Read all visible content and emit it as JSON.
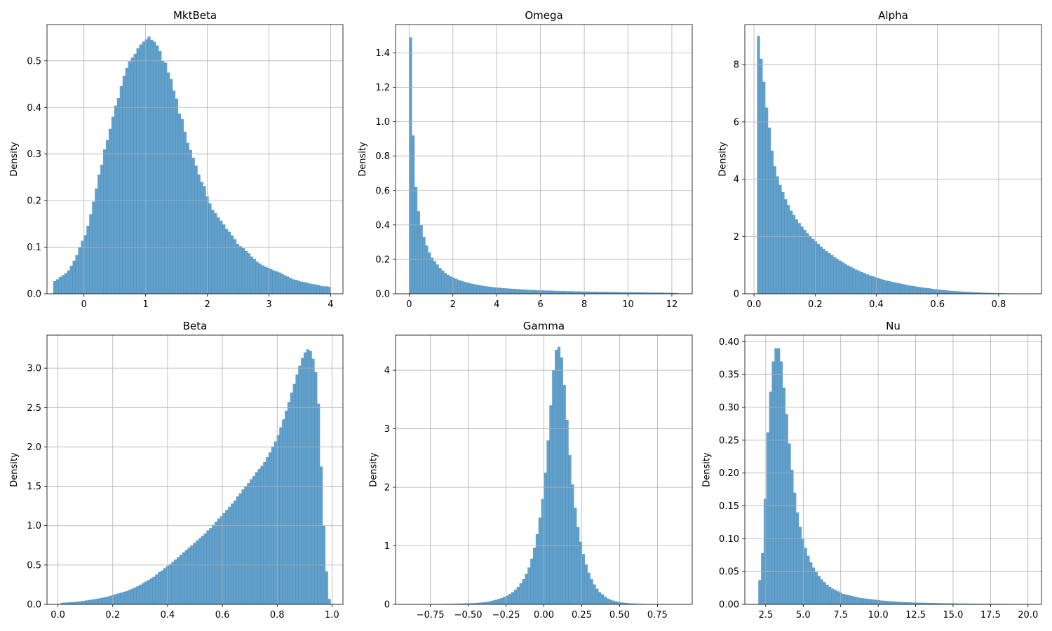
{
  "chart_data": [
    {
      "type": "bar",
      "title": "MktBeta",
      "ylabel": "Density",
      "xlim": [
        -0.6,
        4.2
      ],
      "ylim": [
        0,
        0.578
      ],
      "xticks": [
        {
          "v": 0,
          "label": "0"
        },
        {
          "v": 1,
          "label": "1"
        },
        {
          "v": 2,
          "label": "2"
        },
        {
          "v": 3,
          "label": "3"
        },
        {
          "v": 4,
          "label": "4"
        }
      ],
      "yticks": [
        {
          "v": 0,
          "label": "0.0"
        },
        {
          "v": 0.1,
          "label": "0.1"
        },
        {
          "v": 0.2,
          "label": "0.2"
        },
        {
          "v": 0.3,
          "label": "0.3"
        },
        {
          "v": 0.4,
          "label": "0.4"
        },
        {
          "v": 0.5,
          "label": "0.5"
        }
      ],
      "bins": {
        "start": -0.5,
        "end": 4.0,
        "count": 100
      },
      "values": [
        0.027,
        0.031,
        0.036,
        0.04,
        0.044,
        0.05,
        0.06,
        0.071,
        0.083,
        0.099,
        0.114,
        0.126,
        0.146,
        0.171,
        0.198,
        0.226,
        0.256,
        0.277,
        0.31,
        0.33,
        0.354,
        0.38,
        0.404,
        0.42,
        0.446,
        0.468,
        0.485,
        0.499,
        0.507,
        0.515,
        0.527,
        0.535,
        0.541,
        0.546,
        0.552,
        0.545,
        0.541,
        0.533,
        0.521,
        0.5,
        0.496,
        0.475,
        0.461,
        0.436,
        0.419,
        0.387,
        0.375,
        0.348,
        0.324,
        0.309,
        0.292,
        0.275,
        0.256,
        0.24,
        0.231,
        0.209,
        0.194,
        0.18,
        0.173,
        0.164,
        0.157,
        0.149,
        0.139,
        0.133,
        0.125,
        0.117,
        0.107,
        0.102,
        0.098,
        0.092,
        0.087,
        0.08,
        0.075,
        0.069,
        0.065,
        0.061,
        0.058,
        0.056,
        0.053,
        0.05,
        0.048,
        0.046,
        0.043,
        0.04,
        0.037,
        0.034,
        0.031,
        0.03,
        0.028,
        0.026,
        0.025,
        0.024,
        0.022,
        0.021,
        0.02,
        0.019,
        0.017,
        0.016,
        0.016,
        0.015
      ]
    },
    {
      "type": "bar",
      "title": "Omega",
      "ylabel": "Density",
      "xlim": [
        -0.62,
        12.93
      ],
      "ylim": [
        0,
        1.565
      ],
      "xticks": [
        {
          "v": 0,
          "label": "0"
        },
        {
          "v": 2,
          "label": "2"
        },
        {
          "v": 4,
          "label": "4"
        },
        {
          "v": 6,
          "label": "6"
        },
        {
          "v": 8,
          "label": "8"
        },
        {
          "v": 10,
          "label": "10"
        },
        {
          "v": 12,
          "label": "12"
        }
      ],
      "yticks": [
        {
          "v": 0,
          "label": "0.0"
        },
        {
          "v": 0.2,
          "label": "0.2"
        },
        {
          "v": 0.4,
          "label": "0.4"
        },
        {
          "v": 0.6,
          "label": "0.6"
        },
        {
          "v": 0.8,
          "label": "0.8"
        },
        {
          "v": 1.0,
          "label": "1.0"
        },
        {
          "v": 1.2,
          "label": "1.2"
        },
        {
          "v": 1.4,
          "label": "1.4"
        }
      ],
      "bins": {
        "start": 0.0,
        "end": 12.3,
        "count": 100
      },
      "values": [
        1.49,
        0.92,
        0.62,
        0.48,
        0.4,
        0.33,
        0.28,
        0.24,
        0.21,
        0.19,
        0.17,
        0.15,
        0.135,
        0.12,
        0.11,
        0.1,
        0.094,
        0.087,
        0.08,
        0.075,
        0.07,
        0.066,
        0.062,
        0.058,
        0.055,
        0.052,
        0.049,
        0.046,
        0.044,
        0.042,
        0.04,
        0.038,
        0.036,
        0.035,
        0.033,
        0.032,
        0.031,
        0.03,
        0.029,
        0.028,
        0.027,
        0.026,
        0.025,
        0.024,
        0.023,
        0.022,
        0.022,
        0.021,
        0.02,
        0.02,
        0.019,
        0.019,
        0.018,
        0.018,
        0.017,
        0.017,
        0.016,
        0.016,
        0.015,
        0.015,
        0.015,
        0.014,
        0.014,
        0.014,
        0.013,
        0.013,
        0.013,
        0.012,
        0.012,
        0.012,
        0.011,
        0.011,
        0.011,
        0.011,
        0.01,
        0.01,
        0.01,
        0.01,
        0.009,
        0.009,
        0.009,
        0.009,
        0.009,
        0.008,
        0.008,
        0.008,
        0.008,
        0.008,
        0.007,
        0.007,
        0.007,
        0.007,
        0.007,
        0.007,
        0.006,
        0.006,
        0.006,
        0.006,
        0.005,
        0.004
      ]
    },
    {
      "type": "bar",
      "title": "Alpha",
      "ylabel": "Density",
      "xlim": [
        -0.03,
        0.94
      ],
      "ylim": [
        0,
        9.4
      ],
      "xticks": [
        {
          "v": 0.0,
          "label": "0.0"
        },
        {
          "v": 0.2,
          "label": "0.2"
        },
        {
          "v": 0.4,
          "label": "0.4"
        },
        {
          "v": 0.6,
          "label": "0.6"
        },
        {
          "v": 0.8,
          "label": "0.8"
        }
      ],
      "yticks": [
        {
          "v": 0,
          "label": "0"
        },
        {
          "v": 2,
          "label": "2"
        },
        {
          "v": 4,
          "label": "4"
        },
        {
          "v": 6,
          "label": "6"
        },
        {
          "v": 8,
          "label": "8"
        }
      ],
      "bins": {
        "start": 0.01,
        "end": 0.9,
        "count": 100
      },
      "values": [
        9.0,
        8.2,
        7.4,
        6.5,
        5.8,
        5.0,
        4.45,
        4.1,
        3.8,
        3.55,
        3.3,
        3.1,
        2.9,
        2.75,
        2.6,
        2.47,
        2.35,
        2.23,
        2.12,
        2.02,
        1.92,
        1.83,
        1.74,
        1.65,
        1.57,
        1.49,
        1.42,
        1.35,
        1.28,
        1.22,
        1.16,
        1.1,
        1.04,
        0.99,
        0.94,
        0.89,
        0.84,
        0.8,
        0.76,
        0.72,
        0.68,
        0.64,
        0.61,
        0.58,
        0.55,
        0.52,
        0.49,
        0.46,
        0.44,
        0.42,
        0.4,
        0.38,
        0.36,
        0.34,
        0.32,
        0.3,
        0.28,
        0.27,
        0.25,
        0.24,
        0.22,
        0.21,
        0.2,
        0.19,
        0.17,
        0.16,
        0.15,
        0.14,
        0.13,
        0.12,
        0.11,
        0.1,
        0.095,
        0.088,
        0.082,
        0.076,
        0.07,
        0.065,
        0.06,
        0.055,
        0.05,
        0.046,
        0.042,
        0.038,
        0.035,
        0.032,
        0.029,
        0.026,
        0.024,
        0.022,
        0.02,
        0.018,
        0.016,
        0.015,
        0.013,
        0.012,
        0.011,
        0.01,
        0.009,
        0.008
      ]
    },
    {
      "type": "bar",
      "title": "Beta",
      "ylabel": "Density",
      "xlim": [
        -0.04,
        1.04
      ],
      "ylim": [
        0,
        3.42
      ],
      "xticks": [
        {
          "v": 0.0,
          "label": "0.0"
        },
        {
          "v": 0.2,
          "label": "0.2"
        },
        {
          "v": 0.4,
          "label": "0.4"
        },
        {
          "v": 0.6,
          "label": "0.6"
        },
        {
          "v": 0.8,
          "label": "0.8"
        },
        {
          "v": 1.0,
          "label": "1.0"
        }
      ],
      "yticks": [
        {
          "v": 0,
          "label": "0.0"
        },
        {
          "v": 0.5,
          "label": "0.5"
        },
        {
          "v": 1.0,
          "label": "1.0"
        },
        {
          "v": 1.5,
          "label": "1.5"
        },
        {
          "v": 2.0,
          "label": "2.0"
        },
        {
          "v": 2.5,
          "label": "2.5"
        },
        {
          "v": 3.0,
          "label": "3.0"
        }
      ],
      "bins": {
        "start": 0.01,
        "end": 0.995,
        "count": 100
      },
      "values": [
        0.02,
        0.022,
        0.024,
        0.027,
        0.03,
        0.033,
        0.036,
        0.04,
        0.045,
        0.05,
        0.055,
        0.06,
        0.066,
        0.072,
        0.078,
        0.085,
        0.092,
        0.1,
        0.11,
        0.12,
        0.13,
        0.14,
        0.15,
        0.16,
        0.17,
        0.185,
        0.2,
        0.215,
        0.23,
        0.25,
        0.27,
        0.29,
        0.31,
        0.33,
        0.35,
        0.38,
        0.41,
        0.43,
        0.46,
        0.49,
        0.51,
        0.54,
        0.57,
        0.6,
        0.63,
        0.66,
        0.69,
        0.72,
        0.75,
        0.78,
        0.81,
        0.84,
        0.87,
        0.9,
        0.94,
        0.97,
        1.01,
        1.05,
        1.09,
        1.12,
        1.16,
        1.2,
        1.24,
        1.28,
        1.32,
        1.37,
        1.41,
        1.46,
        1.5,
        1.54,
        1.59,
        1.63,
        1.68,
        1.72,
        1.76,
        1.81,
        1.87,
        1.93,
        2.0,
        2.07,
        2.15,
        2.25,
        2.35,
        2.46,
        2.57,
        2.69,
        2.8,
        2.92,
        3.03,
        3.13,
        3.2,
        3.24,
        3.22,
        3.12,
        2.95,
        2.55,
        1.75,
        1.0,
        0.42,
        0.07
      ]
    },
    {
      "type": "bar",
      "title": "Gamma",
      "ylabel": "Density",
      "xlim": [
        -0.98,
        0.98
      ],
      "ylim": [
        0,
        4.6
      ],
      "xticks": [
        {
          "v": -0.75,
          "label": "−0.75"
        },
        {
          "v": -0.5,
          "label": "−0.50"
        },
        {
          "v": -0.25,
          "label": "−0.25"
        },
        {
          "v": 0.0,
          "label": "0.00"
        },
        {
          "v": 0.25,
          "label": "0.25"
        },
        {
          "v": 0.5,
          "label": "0.50"
        },
        {
          "v": 0.75,
          "label": "0.75"
        }
      ],
      "yticks": [
        {
          "v": 0,
          "label": "0"
        },
        {
          "v": 1,
          "label": "1"
        },
        {
          "v": 2,
          "label": "2"
        },
        {
          "v": 3,
          "label": "3"
        },
        {
          "v": 4,
          "label": "4"
        }
      ],
      "bins": {
        "start": -0.9,
        "end": 0.9,
        "count": 100
      },
      "values": [
        0.002,
        0.002,
        0.002,
        0.003,
        0.003,
        0.003,
        0.004,
        0.004,
        0.005,
        0.005,
        0.006,
        0.006,
        0.007,
        0.008,
        0.009,
        0.01,
        0.011,
        0.012,
        0.013,
        0.014,
        0.015,
        0.017,
        0.019,
        0.021,
        0.023,
        0.026,
        0.03,
        0.035,
        0.04,
        0.048,
        0.057,
        0.068,
        0.08,
        0.095,
        0.11,
        0.13,
        0.15,
        0.18,
        0.21,
        0.25,
        0.3,
        0.36,
        0.43,
        0.52,
        0.63,
        0.78,
        0.97,
        1.2,
        1.48,
        1.8,
        2.25,
        2.8,
        3.4,
        4.0,
        4.35,
        4.4,
        4.22,
        3.75,
        3.15,
        2.55,
        2.05,
        1.65,
        1.32,
        1.07,
        0.86,
        0.68,
        0.54,
        0.43,
        0.34,
        0.27,
        0.21,
        0.17,
        0.13,
        0.1,
        0.08,
        0.065,
        0.052,
        0.042,
        0.034,
        0.028,
        0.023,
        0.019,
        0.016,
        0.014,
        0.012,
        0.01,
        0.009,
        0.008,
        0.007,
        0.006,
        0.005,
        0.005,
        0.004,
        0.004,
        0.003,
        0.003,
        0.003,
        0.002,
        0.002,
        0.002
      ]
    },
    {
      "type": "bar",
      "title": "Nu",
      "ylabel": "Density",
      "xlim": [
        1.1,
        20.9
      ],
      "ylim": [
        0,
        0.41
      ],
      "xticks": [
        {
          "v": 2.5,
          "label": "2.5"
        },
        {
          "v": 5.0,
          "label": "5.0"
        },
        {
          "v": 7.5,
          "label": "7.5"
        },
        {
          "v": 10.0,
          "label": "10.0"
        },
        {
          "v": 12.5,
          "label": "12.5"
        },
        {
          "v": 15.0,
          "label": "15.0"
        },
        {
          "v": 17.5,
          "label": "17.5"
        },
        {
          "v": 20.0,
          "label": "20.0"
        }
      ],
      "yticks": [
        {
          "v": 0,
          "label": "0.00"
        },
        {
          "v": 0.05,
          "label": "0.05"
        },
        {
          "v": 0.1,
          "label": "0.10"
        },
        {
          "v": 0.15,
          "label": "0.15"
        },
        {
          "v": 0.2,
          "label": "0.20"
        },
        {
          "v": 0.25,
          "label": "0.25"
        },
        {
          "v": 0.3,
          "label": "0.30"
        },
        {
          "v": 0.35,
          "label": "0.35"
        },
        {
          "v": 0.4,
          "label": "0.40"
        }
      ],
      "bins": {
        "start": 2.0,
        "end": 20.0,
        "count": 100
      },
      "values": [
        0.037,
        0.078,
        0.161,
        0.262,
        0.324,
        0.37,
        0.39,
        0.39,
        0.37,
        0.33,
        0.29,
        0.245,
        0.205,
        0.17,
        0.14,
        0.118,
        0.1,
        0.086,
        0.074,
        0.064,
        0.056,
        0.049,
        0.043,
        0.038,
        0.034,
        0.03,
        0.027,
        0.024,
        0.022,
        0.02,
        0.018,
        0.016,
        0.015,
        0.014,
        0.013,
        0.012,
        0.011,
        0.01,
        0.0095,
        0.009,
        0.0085,
        0.008,
        0.0075,
        0.007,
        0.0065,
        0.006,
        0.0056,
        0.0052,
        0.0049,
        0.0046,
        0.0043,
        0.004,
        0.0038,
        0.0036,
        0.0034,
        0.0032,
        0.003,
        0.0028,
        0.0027,
        0.0026,
        0.0025,
        0.0024,
        0.0023,
        0.0022,
        0.0021,
        0.002,
        0.0019,
        0.0018,
        0.0017,
        0.0016,
        0.0016,
        0.0015,
        0.0015,
        0.0014,
        0.0014,
        0.0013,
        0.0013,
        0.0012,
        0.0012,
        0.0011,
        0.0011,
        0.001,
        0.001,
        0.001,
        0.0009,
        0.0009,
        0.0009,
        0.0008,
        0.0008,
        0.0008,
        0.0007,
        0.0007,
        0.0007,
        0.0006,
        0.0006,
        0.0006,
        0.0005,
        0.0005,
        0.0005,
        0.0004
      ]
    }
  ]
}
